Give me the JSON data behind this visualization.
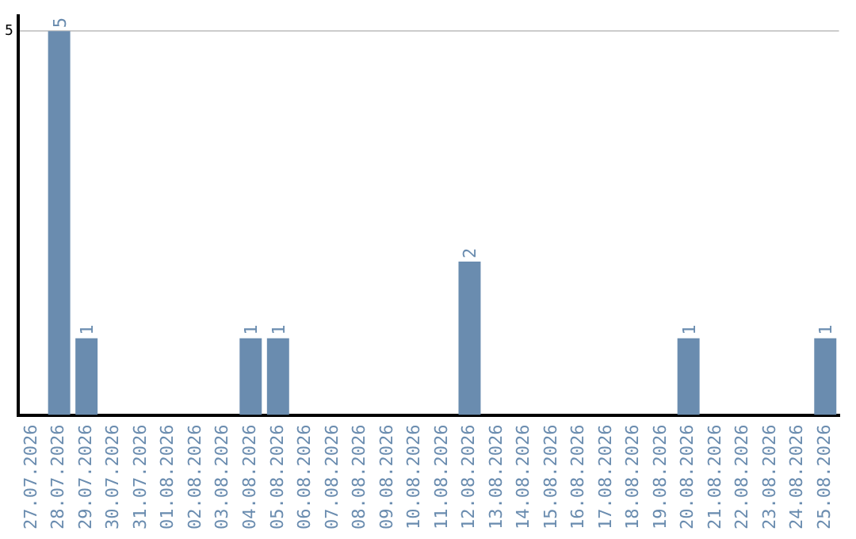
{
  "chart_data": {
    "type": "bar",
    "categories": [
      "27.07.2026",
      "28.07.2026",
      "29.07.2026",
      "30.07.2026",
      "31.07.2026",
      "01.08.2026",
      "02.08.2026",
      "03.08.2026",
      "04.08.2026",
      "05.08.2026",
      "06.08.2026",
      "07.08.2026",
      "08.08.2026",
      "09.08.2026",
      "10.08.2026",
      "11.08.2026",
      "12.08.2026",
      "13.08.2026",
      "14.08.2026",
      "15.08.2026",
      "16.08.2026",
      "17.08.2026",
      "18.08.2026",
      "19.08.2026",
      "20.08.2026",
      "21.08.2026",
      "22.08.2026",
      "23.08.2026",
      "24.08.2026",
      "25.08.2026"
    ],
    "values": [
      0,
      5,
      1,
      0,
      0,
      0,
      0,
      0,
      1,
      1,
      0,
      0,
      0,
      0,
      0,
      0,
      2,
      0,
      0,
      0,
      0,
      0,
      0,
      0,
      1,
      0,
      0,
      0,
      0,
      1
    ],
    "value_labels": [
      null,
      "5",
      "1",
      null,
      null,
      null,
      null,
      null,
      "1",
      "1",
      null,
      null,
      null,
      null,
      null,
      null,
      "2",
      null,
      null,
      null,
      null,
      null,
      null,
      null,
      "1",
      null,
      null,
      null,
      null,
      "1"
    ],
    "color": "#6a8caf",
    "ylim": [
      0,
      5.2
    ],
    "yticks": [
      5
    ],
    "grid": "y",
    "legend": false
  }
}
